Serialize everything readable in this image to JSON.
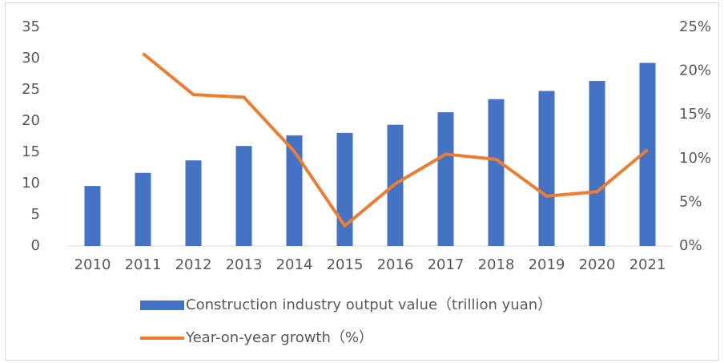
{
  "chart_data": {
    "type": "bar",
    "categories": [
      "2010",
      "2011",
      "2012",
      "2013",
      "2014",
      "2015",
      "2016",
      "2017",
      "2018",
      "2019",
      "2020",
      "2021"
    ],
    "series": [
      {
        "name": "Construction industry output value（trillion yuan）",
        "type": "bar",
        "color": "#4472c4",
        "values": [
          9.6,
          11.7,
          13.7,
          16.0,
          17.7,
          18.1,
          19.4,
          21.4,
          23.5,
          24.8,
          26.4,
          29.3
        ]
      },
      {
        "name": "Year-on-year growth（%）",
        "type": "line",
        "axis": "y2",
        "color": "#ed7d31",
        "values": [
          null,
          22.0,
          17.3,
          17.0,
          10.8,
          2.3,
          7.1,
          10.5,
          9.9,
          5.7,
          6.2,
          11.0
        ]
      }
    ],
    "ylim": [
      0,
      35
    ],
    "yticks": [
      0,
      5,
      10,
      15,
      20,
      25,
      30,
      35
    ],
    "y2lim": [
      0,
      25
    ],
    "y2ticks": [
      {
        "value": 0,
        "label": "0%"
      },
      {
        "value": 5,
        "label": "5%"
      },
      {
        "value": 10,
        "label": "10%"
      },
      {
        "value": 15,
        "label": "15%"
      },
      {
        "value": 20,
        "label": "20%"
      },
      {
        "value": 25,
        "label": "25%"
      }
    ],
    "legend": "bottom"
  }
}
